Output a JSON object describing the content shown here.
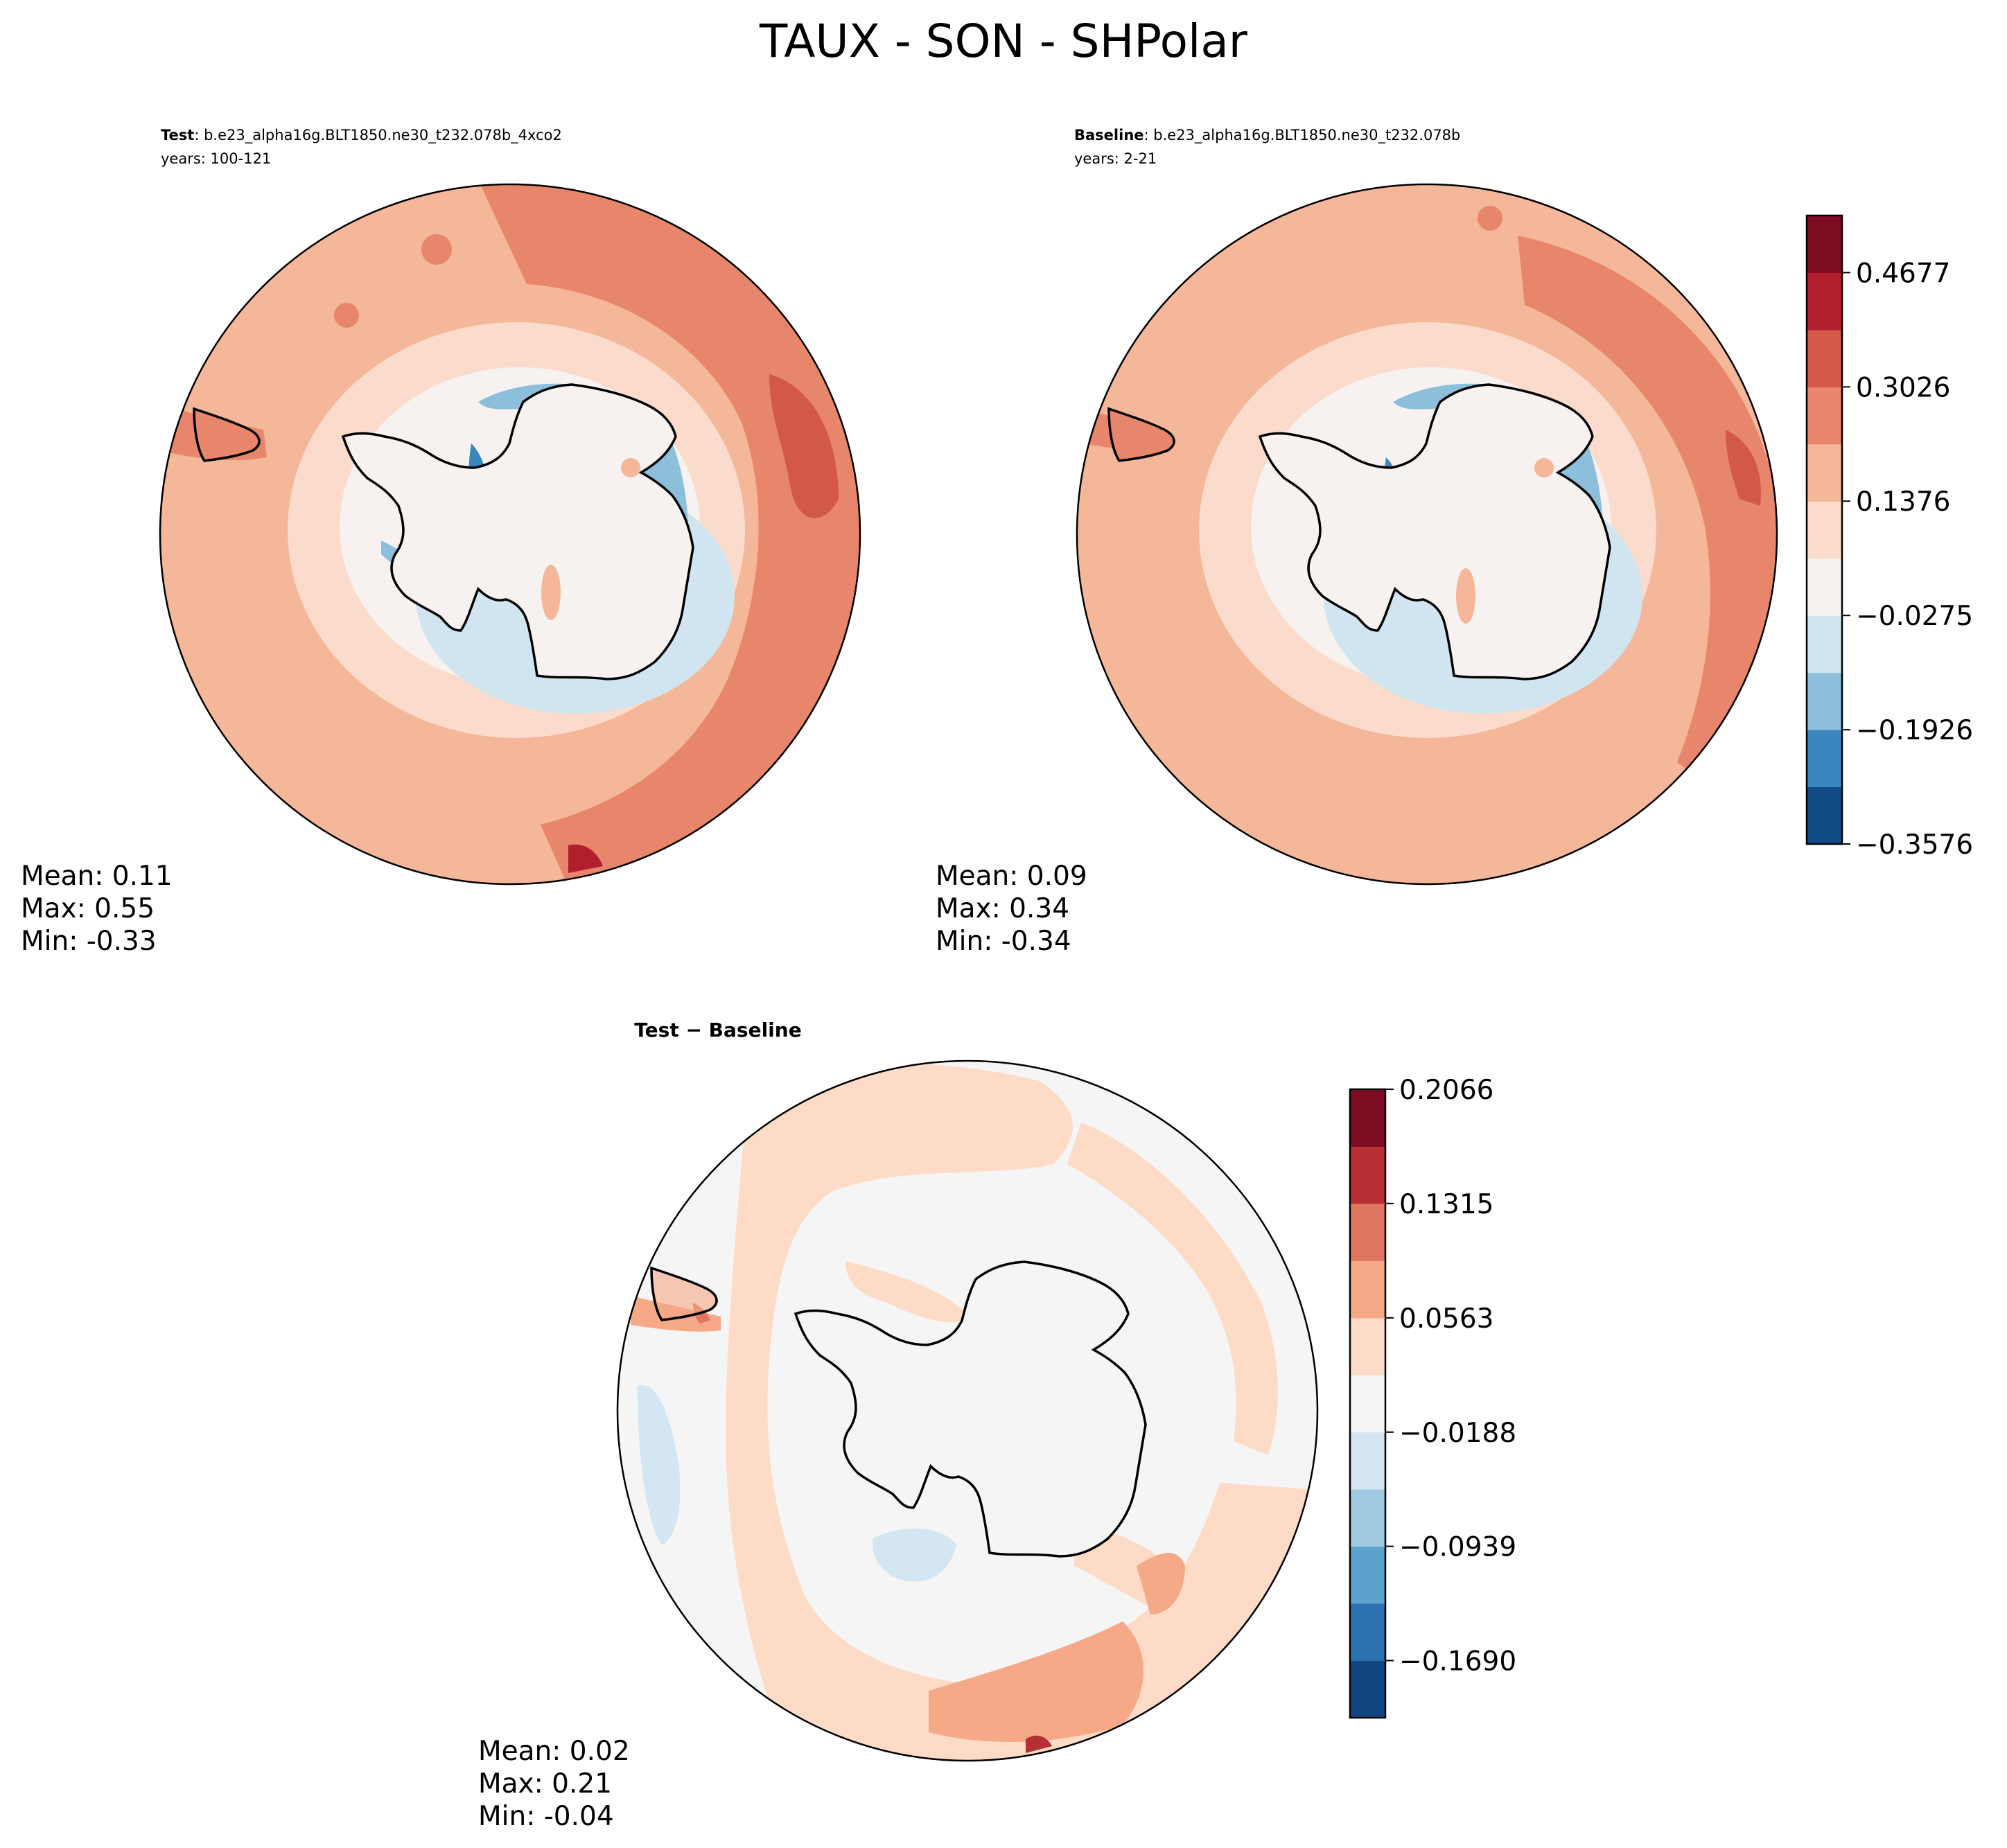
{
  "title": "TAUX - SON - SHPolar",
  "panels": {
    "test": {
      "label": "Test",
      "case": ": b.e23_alpha16g.BLT1850.ne30_t232.078b_4xco2",
      "years": "years: 100-121",
      "stats": {
        "mean": "Mean:  0.11",
        "max": "Max:  0.55",
        "min": "Min: -0.33"
      }
    },
    "baseline": {
      "label": "Baseline",
      "case": ": b.e23_alpha16g.BLT1850.ne30_t232.078b",
      "years": "years: 2-21",
      "stats": {
        "mean": "Mean:  0.09",
        "max": "Max:  0.34",
        "min": "Min: -0.34"
      }
    },
    "diff": {
      "title": "Test − Baseline",
      "stats": {
        "mean": "Mean:  0.02",
        "max": "Max:  0.21",
        "min": "Min: -0.04"
      }
    }
  },
  "colorbars": {
    "main": {
      "ticks": [
        "−0.3576",
        "−0.1926",
        "−0.0275",
        "0.1376",
        "0.3026",
        "0.4677"
      ],
      "tick_values": [
        -0.3576,
        -0.1926,
        -0.0275,
        0.1376,
        0.3026,
        0.4677
      ],
      "range": [
        -0.3576,
        0.5502
      ],
      "colors": [
        "#134b87",
        "#3a87bd",
        "#8bbfdc",
        "#d1e5f0",
        "#f7f2ef",
        "#fbdbcb",
        "#f5b799",
        "#e7866a",
        "#d25848",
        "#b11f2e",
        "#7e0d23"
      ]
    },
    "diff": {
      "ticks": [
        "−0.1690",
        "−0.0939",
        "−0.0188",
        "0.0563",
        "0.1315",
        "0.2066"
      ],
      "tick_values": [
        -0.169,
        -0.0939,
        -0.0188,
        0.0563,
        0.1315,
        0.2066
      ],
      "range": [
        -0.2066,
        0.2066
      ],
      "colors": [
        "#114781",
        "#2c72b1",
        "#5da2cc",
        "#9fcae1",
        "#d3e6f1",
        "#f5f5f5",
        "#fddbc7",
        "#f5a987",
        "#e07560",
        "#b82f33",
        "#7e0d23"
      ]
    }
  },
  "chart_data": [
    {
      "type": "heatmap",
      "projection": "south-polar-stereographic",
      "variable": "TAUX",
      "season": "SON",
      "panel": "test",
      "mean": 0.11,
      "max": 0.55,
      "min": -0.33,
      "levels": [
        -0.3576,
        -0.1926,
        -0.0275,
        0.1376,
        0.3026,
        0.4677
      ]
    },
    {
      "type": "heatmap",
      "projection": "south-polar-stereographic",
      "variable": "TAUX",
      "season": "SON",
      "panel": "baseline",
      "mean": 0.09,
      "max": 0.34,
      "min": -0.34,
      "levels": [
        -0.3576,
        -0.1926,
        -0.0275,
        0.1376,
        0.3026,
        0.4677
      ]
    },
    {
      "type": "heatmap",
      "projection": "south-polar-stereographic",
      "variable": "TAUX",
      "season": "SON",
      "panel": "diff",
      "mean": 0.02,
      "max": 0.21,
      "min": -0.04,
      "levels": [
        -0.169,
        -0.0939,
        -0.0188,
        0.0563,
        0.1315,
        0.2066
      ]
    }
  ]
}
